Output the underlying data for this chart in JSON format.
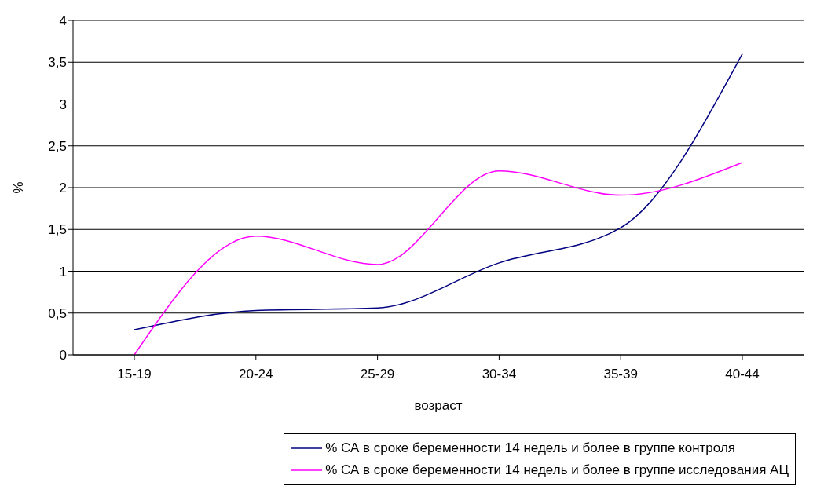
{
  "chart_data": {
    "type": "line",
    "xlabel": "возраст",
    "ylabel": "%",
    "categories": [
      "15-19",
      "20-24",
      "25-29",
      "30-34",
      "35-39",
      "40-44"
    ],
    "series": [
      {
        "name": "% СА  в сроке беременности 14 недель и более в группе контроля",
        "color": "#000080",
        "values": [
          0.3,
          0.53,
          0.56,
          1.1,
          1.52,
          3.6
        ]
      },
      {
        "name": "% СА  в сроке беременности 14 недель и более в группе исследования АЦ",
        "color": "#ff00ff",
        "values": [
          0,
          1.42,
          1.08,
          2.2,
          1.91,
          2.3
        ]
      }
    ],
    "ylim": [
      0,
      4
    ],
    "yticks": [
      0,
      {
        "value": 0.5,
        "label": "0,5"
      },
      1,
      {
        "value": 1.5,
        "label": "1,5"
      },
      2,
      {
        "value": 2.5,
        "label": "2,5"
      },
      3,
      {
        "value": 3.5,
        "label": "3,5"
      },
      4
    ],
    "grid": "y",
    "legend": "bottom",
    "marker": "none",
    "line_style": "solid"
  }
}
